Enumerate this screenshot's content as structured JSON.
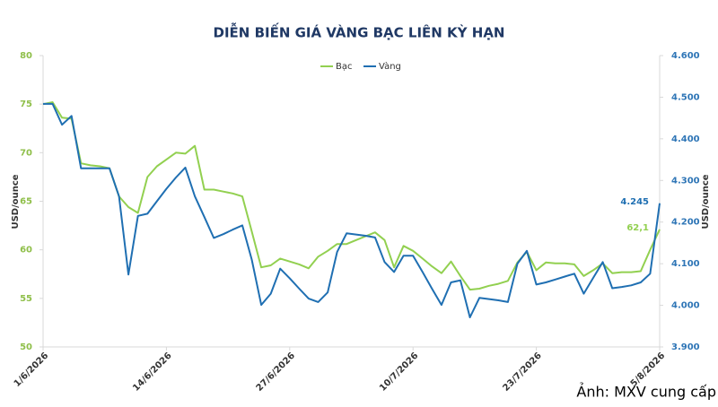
{
  "caption": "Ảnh: MXV cung cấp",
  "chart_data": {
    "type": "line",
    "title": "DIỄN BIẾN GIÁ VÀNG BẠC LIÊN KỲ HẠN",
    "y_label": "USD/ounce",
    "y2_label": "USD/ounce",
    "categories": [
      "1/6/2026",
      null,
      null,
      null,
      null,
      null,
      null,
      null,
      null,
      null,
      null,
      null,
      null,
      "14/6/2026",
      null,
      null,
      null,
      null,
      null,
      null,
      null,
      null,
      null,
      null,
      null,
      null,
      "27/6/2026",
      null,
      null,
      null,
      null,
      null,
      null,
      null,
      null,
      null,
      null,
      null,
      null,
      "10/7/2026",
      null,
      null,
      null,
      null,
      null,
      null,
      null,
      null,
      null,
      null,
      null,
      null,
      "23/7/2026",
      null,
      null,
      null,
      null,
      null,
      null,
      null,
      null,
      null,
      null,
      null,
      null,
      "5/8/2026"
    ],
    "series": [
      {
        "name": "Bạc",
        "color": "#92d050",
        "axis": "y",
        "values": [
          75.0,
          75.2,
          73.6,
          73.5,
          68.9,
          68.7,
          68.6,
          68.4,
          65.5,
          64.4,
          63.8,
          67.5,
          68.6,
          69.3,
          70.0,
          69.9,
          70.7,
          66.2,
          66.2,
          66.0,
          65.8,
          65.5,
          61.9,
          58.2,
          58.4,
          59.1,
          58.8,
          58.5,
          58.1,
          59.3,
          59.9,
          60.6,
          60.6,
          61.0,
          61.4,
          61.8,
          61.0,
          58.2,
          60.4,
          59.9,
          59.1,
          58.3,
          57.6,
          58.8,
          57.3,
          55.9,
          56.0,
          56.3,
          56.5,
          56.8,
          58.7,
          59.8,
          57.9,
          58.7,
          58.6,
          58.6,
          58.5,
          57.3,
          57.9,
          58.6,
          57.6,
          57.7,
          57.7,
          57.8,
          60.0,
          62.1
        ],
        "value_labels": [
          null,
          null,
          null,
          null,
          null,
          null,
          null,
          null,
          null,
          null,
          null,
          null,
          null,
          null,
          null,
          null,
          null,
          null,
          null,
          null,
          null,
          null,
          null,
          null,
          null,
          null,
          null,
          null,
          null,
          null,
          null,
          null,
          null,
          null,
          null,
          null,
          null,
          null,
          null,
          null,
          null,
          null,
          null,
          null,
          null,
          null,
          null,
          null,
          null,
          null,
          null,
          null,
          null,
          null,
          null,
          null,
          null,
          null,
          null,
          null,
          null,
          null,
          null,
          null,
          null,
          "62,1"
        ]
      },
      {
        "name": "Vàng",
        "color": "#1f6fb2",
        "axis": "y2",
        "values": [
          4484,
          4484,
          4434,
          4455,
          4329,
          4329,
          4329,
          4329,
          4262,
          4074,
          4215,
          4220,
          4250,
          4280,
          4307,
          4331,
          4262,
          4212,
          4162,
          4171,
          4182,
          4192,
          4110,
          4001,
          4028,
          4088,
          4065,
          4040,
          4016,
          4008,
          4031,
          4128,
          4173,
          4170,
          4167,
          4163,
          4104,
          4080,
          4119,
          4119,
          4080,
          4040,
          4001,
          4055,
          4060,
          3971,
          4018,
          4015,
          4012,
          4008,
          4100,
          4131,
          4050,
          4055,
          4062,
          4069,
          4076,
          4028,
          4066,
          4104,
          4041,
          4044,
          4048,
          4055,
          4076,
          4245
        ],
        "value_labels": [
          null,
          null,
          null,
          null,
          null,
          null,
          null,
          null,
          null,
          null,
          null,
          null,
          null,
          null,
          null,
          null,
          null,
          null,
          null,
          null,
          null,
          null,
          null,
          null,
          null,
          null,
          null,
          null,
          null,
          null,
          null,
          null,
          null,
          null,
          null,
          null,
          null,
          null,
          null,
          null,
          null,
          null,
          null,
          null,
          null,
          null,
          null,
          null,
          null,
          null,
          null,
          null,
          null,
          null,
          null,
          null,
          null,
          null,
          null,
          null,
          null,
          null,
          null,
          null,
          null,
          "4.245"
        ]
      }
    ],
    "ylim": [
      50,
      80
    ],
    "yticks": [
      50,
      55,
      60,
      65,
      70,
      75,
      80
    ],
    "y2lim": [
      3900,
      4600
    ],
    "y2ticks": [
      {
        "value": 3900,
        "label": "3.900"
      },
      {
        "value": 4000,
        "label": "4.000"
      },
      {
        "value": 4100,
        "label": "4.100"
      },
      {
        "value": 4200,
        "label": "4.200"
      },
      {
        "value": 4300,
        "label": "4.300"
      },
      {
        "value": 4400,
        "label": "4.400"
      },
      {
        "value": 4500,
        "label": "4.500"
      },
      {
        "value": 4600,
        "label": "4.600"
      }
    ],
    "y_tick_color": "#8fbf4a",
    "y2_tick_color": "#2e75b6",
    "grid": false,
    "legend": "top"
  }
}
